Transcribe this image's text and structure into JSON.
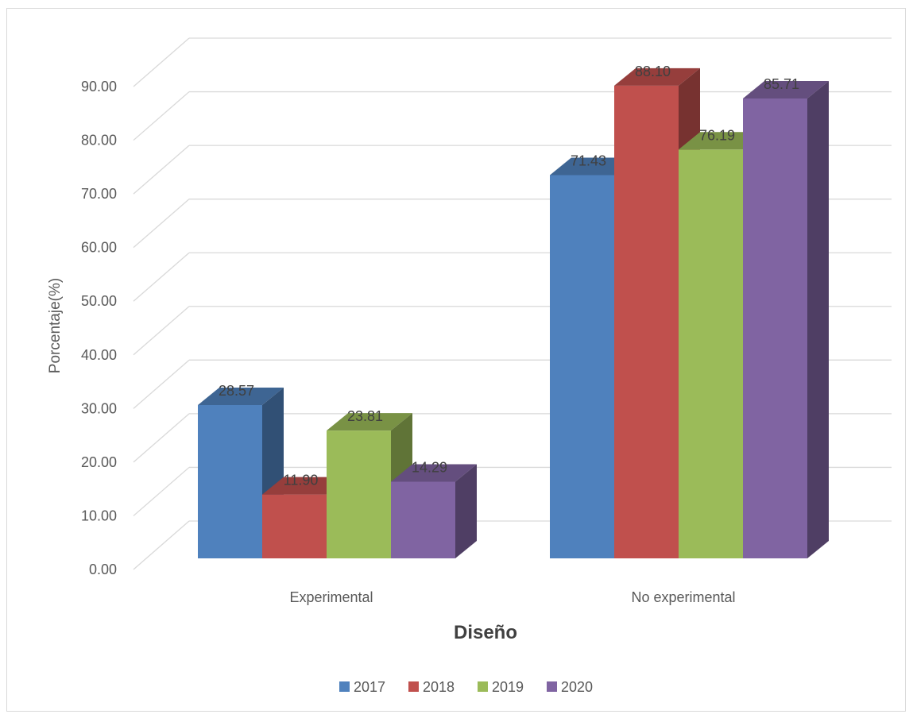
{
  "chart_data": {
    "type": "bar",
    "style": "3d-clustered-column",
    "categories": [
      "Experimental",
      "No experimental"
    ],
    "series": [
      {
        "name": "2017",
        "values": [
          28.57,
          71.43
        ],
        "color": "#4F81BD"
      },
      {
        "name": "2018",
        "values": [
          11.9,
          88.1
        ],
        "color": "#C0504D"
      },
      {
        "name": "2019",
        "values": [
          23.81,
          76.19
        ],
        "color": "#9BBB59"
      },
      {
        "name": "2020",
        "values": [
          14.29,
          85.71
        ],
        "color": "#8064A2"
      }
    ],
    "data_labels": [
      [
        "28.57",
        "71.43"
      ],
      [
        "11.90",
        "88.10"
      ],
      [
        "23.81",
        "76.19"
      ],
      [
        "14.29",
        "85.71"
      ]
    ],
    "y_ticks": [
      "0.00",
      "10.00",
      "20.00",
      "30.00",
      "40.00",
      "50.00",
      "60.00",
      "70.00",
      "80.00",
      "90.00"
    ],
    "ylim": [
      0,
      90
    ],
    "xlabel": "Diseño",
    "ylabel": "Porcentaje(%)",
    "grid": true,
    "legend_position": "bottom"
  }
}
